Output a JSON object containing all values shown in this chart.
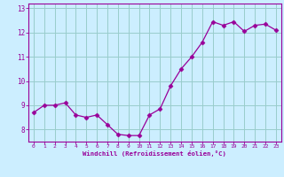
{
  "x": [
    0,
    1,
    2,
    3,
    4,
    5,
    6,
    7,
    8,
    9,
    10,
    11,
    12,
    13,
    14,
    15,
    16,
    17,
    18,
    19,
    20,
    21,
    22,
    23
  ],
  "y": [
    8.7,
    9.0,
    9.0,
    9.1,
    8.6,
    8.5,
    8.6,
    8.2,
    7.8,
    7.75,
    7.75,
    8.6,
    8.85,
    9.8,
    10.5,
    11.0,
    11.6,
    12.45,
    12.3,
    12.45,
    12.05,
    12.3,
    12.35,
    12.1
  ],
  "line_color": "#990099",
  "marker": "D",
  "marker_size": 2.5,
  "background_color": "#cceeff",
  "grid_color": "#99cccc",
  "xlabel": "Windchill (Refroidissement éolien,°C)",
  "xlabel_color": "#990099",
  "tick_color": "#990099",
  "xlim": [
    -0.5,
    23.5
  ],
  "ylim": [
    7.5,
    13.2
  ],
  "yticks": [
    8,
    9,
    10,
    11,
    12,
    13
  ],
  "xticks": [
    0,
    1,
    2,
    3,
    4,
    5,
    6,
    7,
    8,
    9,
    10,
    11,
    12,
    13,
    14,
    15,
    16,
    17,
    18,
    19,
    20,
    21,
    22,
    23
  ]
}
